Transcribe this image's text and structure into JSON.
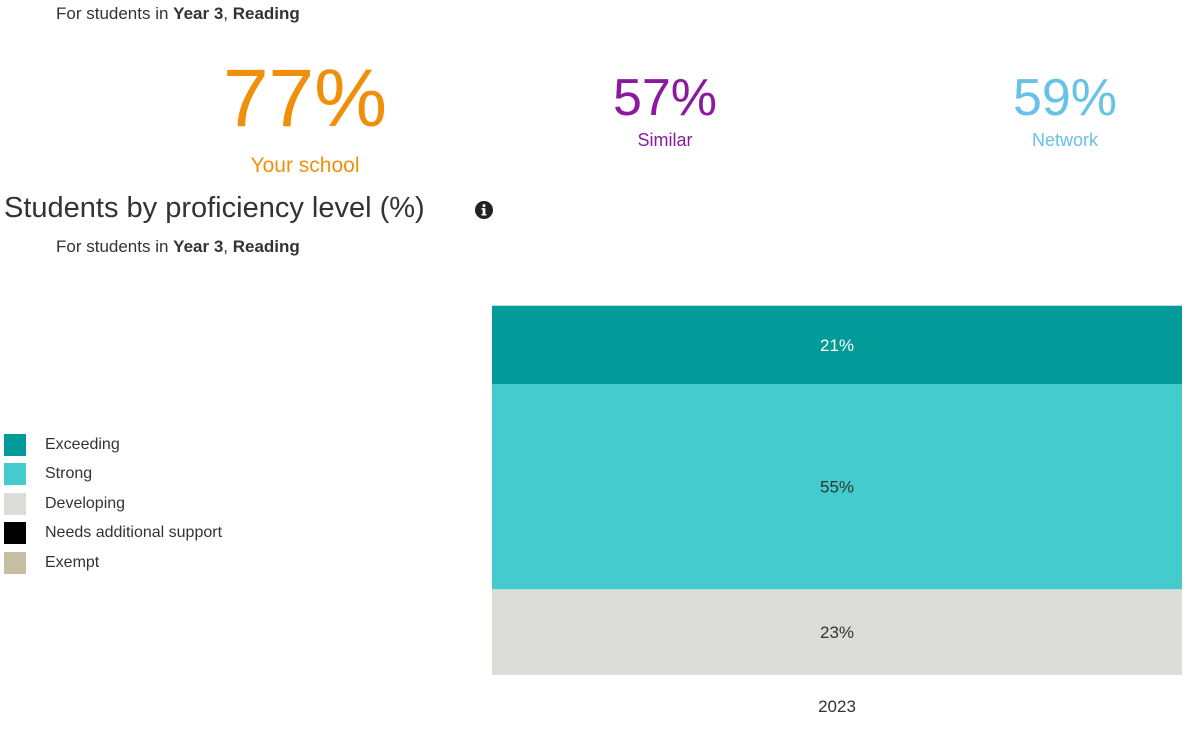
{
  "header": {
    "subtitle_prefix": "For students in ",
    "year": "Year 3",
    "separator": ", ",
    "subject": "Reading"
  },
  "metrics": [
    {
      "value": "77%",
      "label": "Your school",
      "color": "#f0900a"
    },
    {
      "value": "57%",
      "label": "Similar",
      "color": "#8b1a9e"
    },
    {
      "value": "59%",
      "label": "Network",
      "color": "#67c2e8"
    }
  ],
  "chart_section": {
    "title": "Students by proficiency level (%)",
    "info_icon": "info-circle-icon",
    "subtitle_prefix": "For students in ",
    "year": "Year 3",
    "separator": ", ",
    "subject": "Reading"
  },
  "chart_data": {
    "type": "bar",
    "stacked": true,
    "categories": [
      "2023"
    ],
    "series": [
      {
        "name": "Exceeding",
        "values": [
          21
        ],
        "color": "#039a9a",
        "label_color": "#ffffff"
      },
      {
        "name": "Strong",
        "values": [
          55
        ],
        "color": "#44cbcd",
        "label_color": "#333333"
      },
      {
        "name": "Developing",
        "values": [
          23
        ],
        "color": "#dcddd8",
        "label_color": "#333333"
      },
      {
        "name": "Needs additional support",
        "values": [
          0
        ],
        "color": "#000000",
        "label_color": "#ffffff"
      },
      {
        "name": "Exempt",
        "values": [
          0
        ],
        "color": "#c4bfa1",
        "label_color": "#333333"
      }
    ],
    "value_suffix": "%",
    "ylim": [
      0,
      100
    ],
    "grid": false,
    "legend_position": "left"
  }
}
